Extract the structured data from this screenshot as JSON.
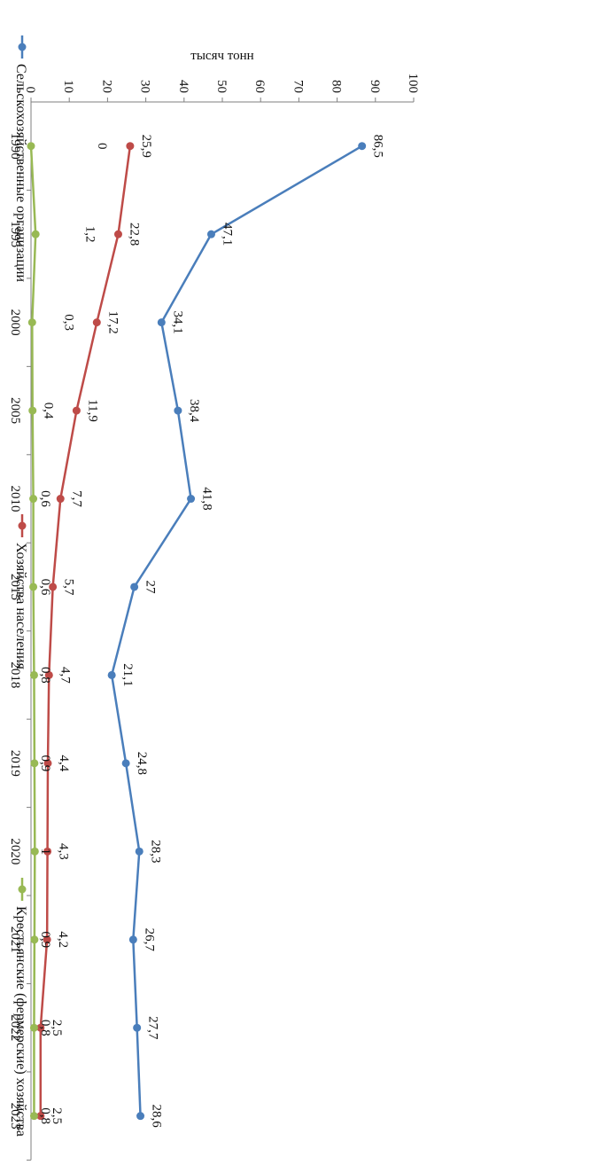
{
  "chart_data": {
    "type": "line",
    "ylabel": "тысяч тонн",
    "ylim": [
      0,
      100
    ],
    "yticks": [
      0,
      10,
      20,
      30,
      40,
      50,
      60,
      70,
      80,
      90,
      100
    ],
    "categories": [
      "1990",
      "1995",
      "2000",
      "2005",
      "2010",
      "2015",
      "2018",
      "2019",
      "2020",
      "2021",
      "2022",
      "2023"
    ],
    "series": [
      {
        "name": "Сельскохозяйственные организации",
        "color": "#4A7EBB",
        "values": [
          86.5,
          47.1,
          34.1,
          38.4,
          41.8,
          27,
          21.1,
          24.8,
          28.3,
          26.7,
          27.7,
          28.6
        ],
        "labels": [
          "86,5",
          "47,1",
          "34,1",
          "38,4",
          "41,8",
          "27",
          "21,1",
          "24,8",
          "28,3",
          "26,7",
          "27,7",
          "28,6"
        ]
      },
      {
        "name": "Хозяйства населения",
        "color": "#BE4B48",
        "values": [
          25.9,
          22.8,
          17.2,
          11.9,
          7.7,
          5.7,
          4.7,
          4.4,
          4.3,
          4.2,
          2.5,
          2.5
        ],
        "labels": [
          "25,9",
          "22,8",
          "17,2",
          "11,9",
          "7,7",
          "5,7",
          "4,7",
          "4,4",
          "4,3",
          "4,2",
          "2,5",
          "2,5"
        ]
      },
      {
        "name": "Крестьянские (фермерские) хозяйства",
        "color": "#98B954",
        "values": [
          0,
          1.2,
          0.3,
          0.4,
          0.6,
          0.6,
          0.8,
          0.9,
          1,
          0.9,
          0.8,
          0.8
        ],
        "labels": [
          "0",
          "1,2",
          "0,3",
          "0,4",
          "0,6",
          "0,6",
          "0,8",
          "0,9",
          "1",
          "0,9",
          "0,8",
          "0,8"
        ]
      }
    ],
    "legend_position": "bottom",
    "grid": false
  }
}
